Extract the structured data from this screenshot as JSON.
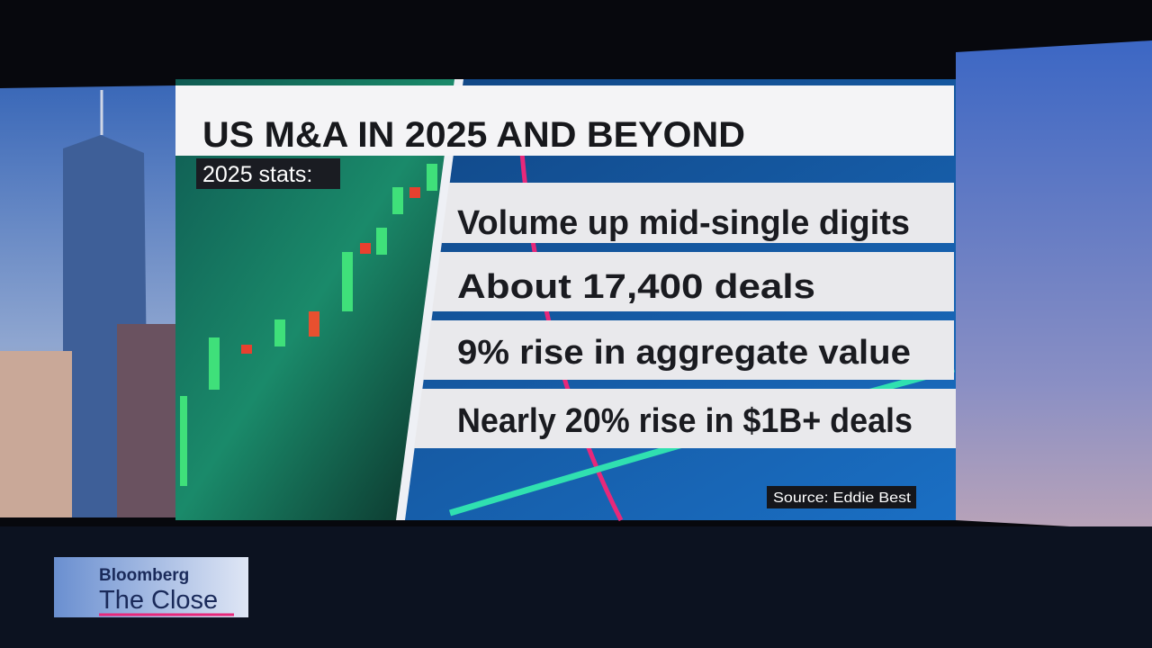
{
  "header": {
    "title": "US M&A IN 2025 AND BEYOND",
    "subtitle": "2025 stats:"
  },
  "stats": [
    "Volume up mid-single digits",
    "About 17,400 deals",
    "9% rise in aggregate value",
    "Nearly 20% rise in $1B+ deals"
  ],
  "source": "Source: Eddie Best",
  "logo": {
    "brand": "Bloomberg",
    "show": "The Close"
  }
}
